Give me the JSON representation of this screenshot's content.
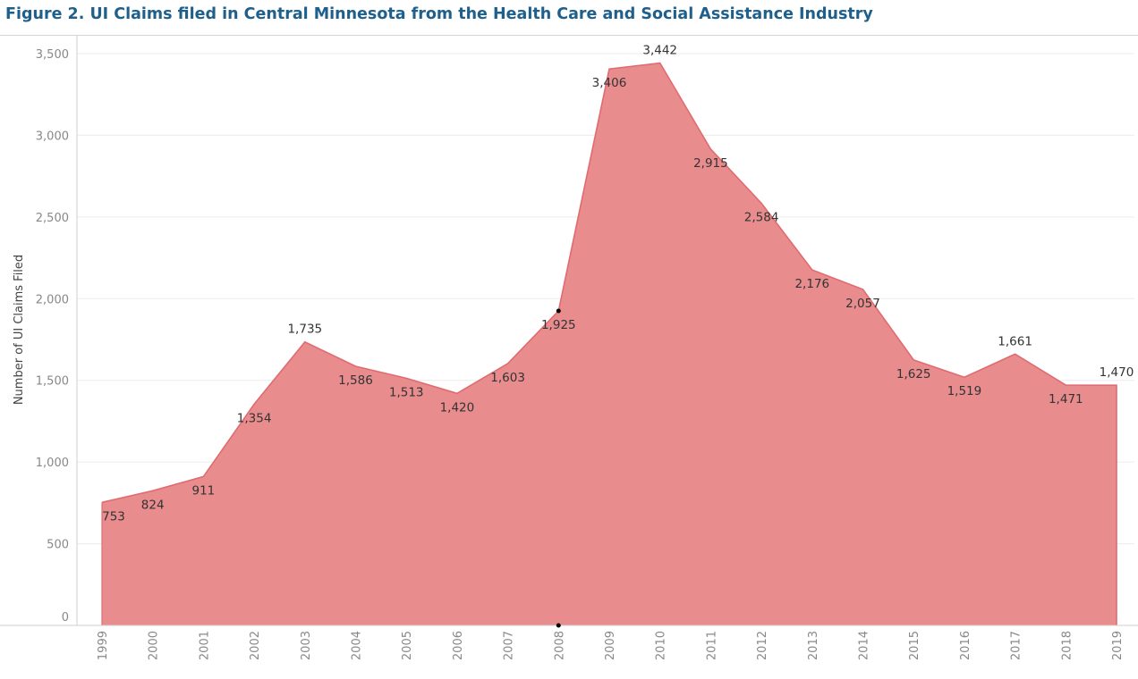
{
  "title": "Figure 2. UI Claims filed in Central Minnesota from the Health Care and Social Assistance Industry",
  "colors": {
    "title": "#1f5f8b",
    "area_fill": "#e88c8e",
    "area_line": "#e06b70",
    "grid": "#ececec",
    "axis": "#cfcfcf",
    "marker": "#000000"
  },
  "chart_data": {
    "type": "area",
    "title": "Figure 2. UI Claims filed in Central Minnesota from the Health Care and Social Assistance Industry",
    "xlabel": "",
    "ylabel": "Number of UI Claims Filed",
    "x": [
      "1999",
      "2000",
      "2001",
      "2002",
      "2003",
      "2004",
      "2005",
      "2006",
      "2007",
      "2008",
      "2009",
      "2010",
      "2011",
      "2012",
      "2013",
      "2014",
      "2015",
      "2016",
      "2017",
      "2018",
      "2019"
    ],
    "values": [
      753,
      824,
      911,
      1354,
      1735,
      1586,
      1513,
      1420,
      1603,
      1925,
      3406,
      3442,
      2915,
      2584,
      2176,
      2057,
      1625,
      1519,
      1661,
      1471,
      1470
    ],
    "data_labels": [
      "753",
      "824",
      "911",
      "1,354",
      "1,735",
      "1,586",
      "1,513",
      "1,420",
      "1,603",
      "1,925",
      "3,406",
      "3,442",
      "2,915",
      "2,584",
      "2,176",
      "2,057",
      "1,625",
      "1,519",
      "1,661",
      "1,471",
      "1,470"
    ],
    "ylim": [
      0,
      3500
    ],
    "y_ticks": [
      0,
      500,
      1000,
      1500,
      2000,
      2500,
      3000,
      3500
    ],
    "y_tick_labels": [
      "0",
      "500",
      "1,000",
      "1,500",
      "2,000",
      "2,500",
      "3,000",
      "3,500"
    ],
    "grid": true,
    "legend": "none",
    "highlighted_category": "2008"
  }
}
